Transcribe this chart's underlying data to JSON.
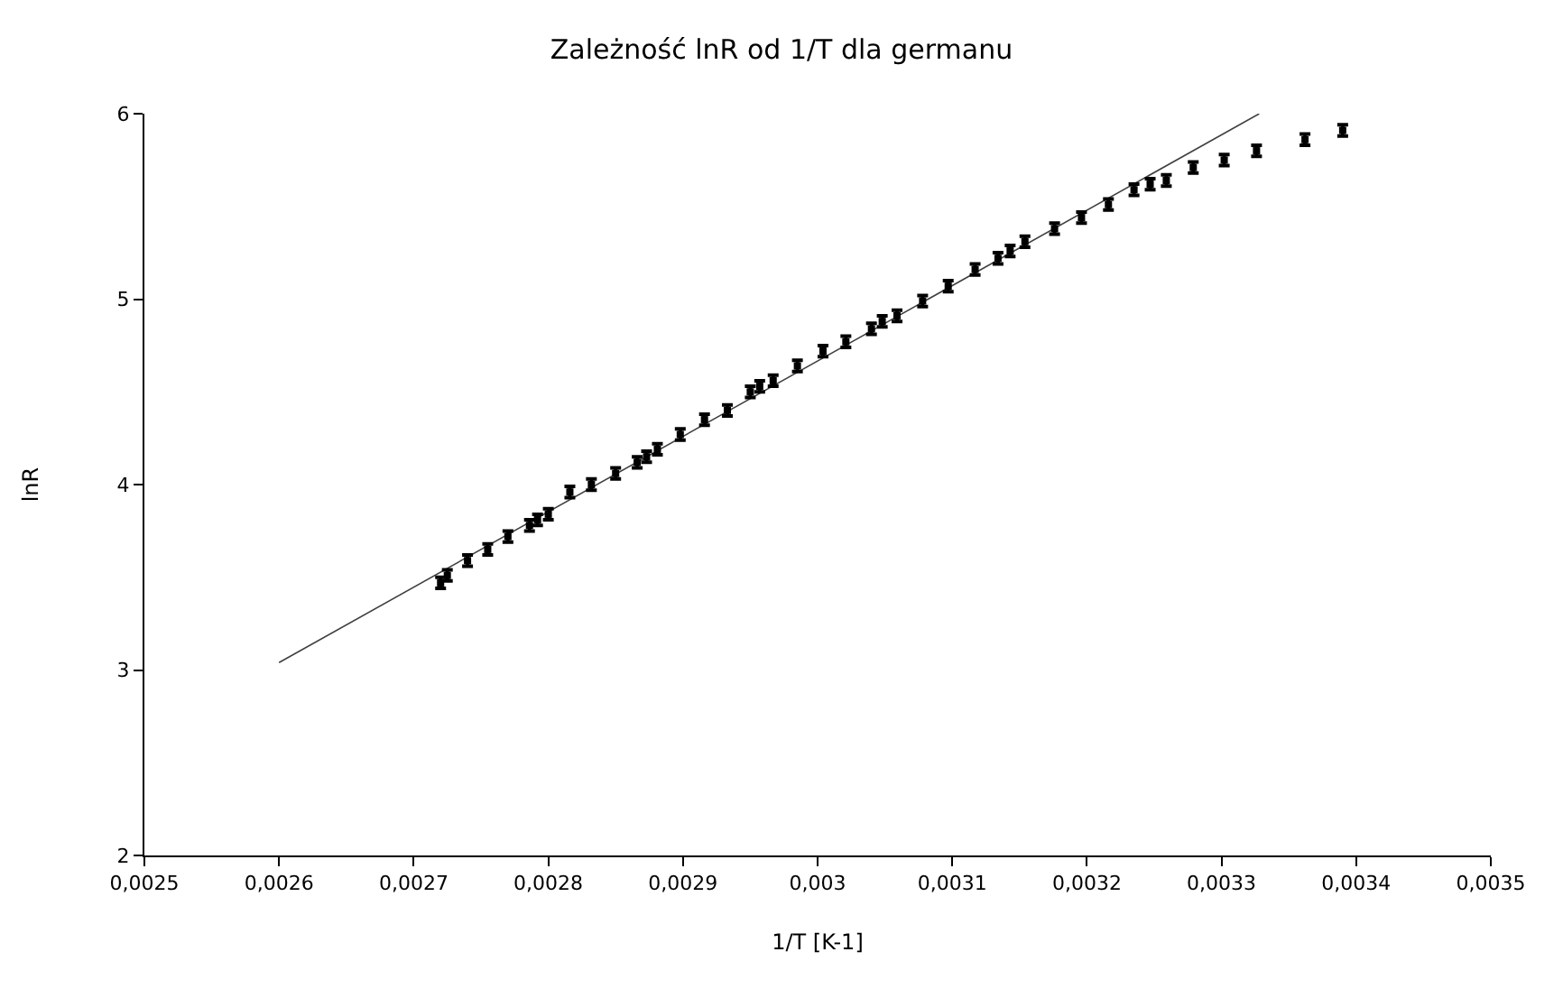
{
  "chart_data": {
    "type": "scatter",
    "title": "Zależność lnR od 1/T dla germanu",
    "xlabel": "1/T [K-1]",
    "ylabel": "lnR",
    "xlim": [
      0.0025,
      0.0035
    ],
    "ylim": [
      2,
      6
    ],
    "xticks": [
      {
        "value": 0.0025,
        "label": "0,0025"
      },
      {
        "value": 0.0026,
        "label": "0,0026"
      },
      {
        "value": 0.0027,
        "label": "0,0027"
      },
      {
        "value": 0.0028,
        "label": "0,0028"
      },
      {
        "value": 0.0029,
        "label": "0,0029"
      },
      {
        "value": 0.003,
        "label": "0,003"
      },
      {
        "value": 0.0031,
        "label": "0,0031"
      },
      {
        "value": 0.0032,
        "label": "0,0032"
      },
      {
        "value": 0.0033,
        "label": "0,0033"
      },
      {
        "value": 0.0034,
        "label": "0,0034"
      },
      {
        "value": 0.0035,
        "label": "0,0035"
      }
    ],
    "yticks": [
      2,
      3,
      4,
      5,
      6
    ],
    "legend": false,
    "series": [
      {
        "type": "line",
        "color": "#404040",
        "marker": "none",
        "line_style": "solid",
        "x": [
          0.0026,
          0.003328
        ],
        "values": [
          3.04,
          6.0
        ]
      },
      {
        "type": "scatter",
        "color": "#000000",
        "x": [
          0.00272,
          0.002725,
          0.00274,
          0.002755,
          0.00277,
          0.002786,
          0.002792,
          0.0028,
          0.002816,
          0.002832,
          0.00285,
          0.002866,
          0.002873,
          0.002881,
          0.002898,
          0.002916,
          0.002933,
          0.00295,
          0.002957,
          0.002967,
          0.002985,
          0.003004,
          0.003021,
          0.00304,
          0.003048,
          0.003059,
          0.003078,
          0.003097,
          0.003117,
          0.003134,
          0.003143,
          0.003154,
          0.003176,
          0.003196,
          0.003216,
          0.003235,
          0.003247,
          0.003259,
          0.003279,
          0.003302,
          0.003326,
          0.003362,
          0.00339
        ],
        "values": [
          3.47,
          3.51,
          3.59,
          3.65,
          3.72,
          3.78,
          3.81,
          3.84,
          3.96,
          4.0,
          4.06,
          4.12,
          4.15,
          4.19,
          4.27,
          4.35,
          4.4,
          4.5,
          4.53,
          4.56,
          4.64,
          4.72,
          4.77,
          4.84,
          4.88,
          4.91,
          4.99,
          5.07,
          5.16,
          5.22,
          5.26,
          5.31,
          5.38,
          5.44,
          5.51,
          5.59,
          5.62,
          5.64,
          5.71,
          5.75,
          5.8,
          5.86,
          5.91
        ],
        "errors": [
          0.03,
          0.03,
          0.03,
          0.03,
          0.03,
          0.03,
          0.03,
          0.03,
          0.03,
          0.03,
          0.03,
          0.03,
          0.03,
          0.03,
          0.03,
          0.03,
          0.03,
          0.03,
          0.03,
          0.03,
          0.03,
          0.03,
          0.03,
          0.03,
          0.03,
          0.03,
          0.03,
          0.03,
          0.03,
          0.03,
          0.03,
          0.03,
          0.03,
          0.03,
          0.03,
          0.03,
          0.03,
          0.03,
          0.03,
          0.03,
          0.03,
          0.03,
          0.03
        ]
      }
    ]
  }
}
